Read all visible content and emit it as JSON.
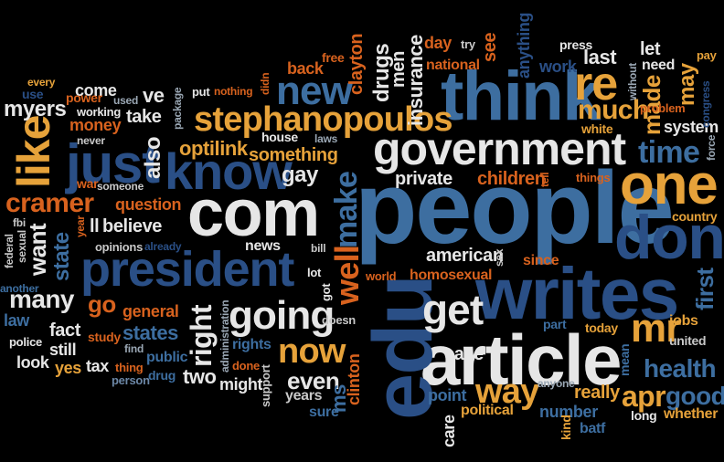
{
  "colors": {
    "background": "#000000",
    "white": "#e6e6e6",
    "blue": "#3d6ea0",
    "gold": "#e6a23a",
    "orange": "#d8621e",
    "navy": "#2a4f86",
    "grey": "#9aa7b4"
  },
  "words": {
    "people": "people",
    "com": "com",
    "article": "article",
    "government": "government",
    "think": "think",
    "president": "president",
    "writes": "writes",
    "edu": "edu",
    "one": "one",
    "don": "don",
    "just": "just",
    "know": "know",
    "stephanopoulos": "stephanopoulos",
    "like": "like",
    "new": "new",
    "re": "re",
    "going": "going",
    "now": "now",
    "get": "get",
    "mr": "mr",
    "time": "time",
    "well": "well",
    "make": "make",
    "right": "right",
    "way": "way",
    "apr": "apr",
    "good": "good",
    "health": "health",
    "first": "first",
    "states": "states",
    "even": "even",
    "cramer": "cramer",
    "many": "many",
    "want": "want",
    "state": "state",
    "also": "also",
    "much": "much",
    "made": "made",
    "may": "may",
    "optilink": "optilink",
    "something": "something",
    "gay": "gay",
    "private": "private",
    "children": "children",
    "believe": "believe",
    "question": "question",
    "american": "american",
    "homosexual": "homosexual",
    "country": "country",
    "clinton": "clinton",
    "ms": "ms",
    "news": "news",
    "house": "house",
    "white": "white",
    "system": "system",
    "last": "last",
    "let": "let",
    "need": "need",
    "back": "back",
    "insurance": "insurance",
    "drugs": "drugs",
    "men": "men",
    "clayton": "clayton",
    "day": "day",
    "see": "see",
    "try": "try",
    "anything": "anything",
    "press": "press",
    "work": "work",
    "national": "national",
    "free": "free",
    "pay": "pay",
    "myers": "myers",
    "come": "come",
    "ve": "ve",
    "take": "take",
    "money": "money",
    "war": "war",
    "general": "general",
    "go": "go",
    "fact": "fact",
    "law": "law",
    "still": "still",
    "look": "look",
    "yes": "yes",
    "tax": "tax",
    "two": "two",
    "might": "might",
    "years": "years",
    "sure": "sure",
    "support": "support",
    "public": "public",
    "drug": "drug",
    "rights": "rights",
    "done": "done",
    "case": "case",
    "part": "part",
    "point": "point",
    "political": "political",
    "care": "care",
    "number": "number",
    "really": "really",
    "today": "today",
    "mean": "mean",
    "jobs": "jobs",
    "united": "united",
    "whether": "whether",
    "long": "long",
    "batf": "batf",
    "kind": "kind",
    "anyone": "anyone",
    "since": "since",
    "sex": "sex",
    "world": "world",
    "lot": "lot",
    "got": "got",
    "doesn": "doesn",
    "administration": "administration",
    "study": "study",
    "police": "police",
    "find": "find",
    "thing": "thing",
    "person": "person",
    "opinions": "opinions",
    "already": "already",
    "bill": "bill",
    "federal": "federal",
    "sexual": "sexual",
    "fbi": "fbi",
    "another": "another",
    "year": "year",
    "someone": "someone",
    "never": "never",
    "working": "working",
    "power": "power",
    "used": "used",
    "use": "use",
    "every": "every",
    "package": "package",
    "put": "put",
    "nothing": "nothing",
    "didn": "didn",
    "laws": "laws",
    "tell": "tell",
    "things": "things",
    "without": "without",
    "problem": "problem",
    "force": "force",
    "congress": "congress",
    "ll": "ll"
  }
}
